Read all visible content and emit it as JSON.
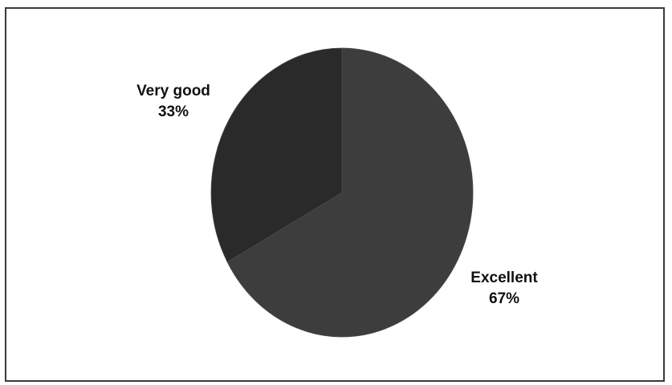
{
  "chart_data": {
    "type": "pie",
    "title": "",
    "legend": "none",
    "slices": [
      {
        "label": "Excellent",
        "value": 67,
        "value_label": "67%",
        "color": "#3d3d3d"
      },
      {
        "label": "Very good",
        "value": 33,
        "value_label": "33%",
        "color": "#2a2a2a"
      }
    ],
    "start_angle_deg": 0,
    "direction": "clockwise"
  }
}
